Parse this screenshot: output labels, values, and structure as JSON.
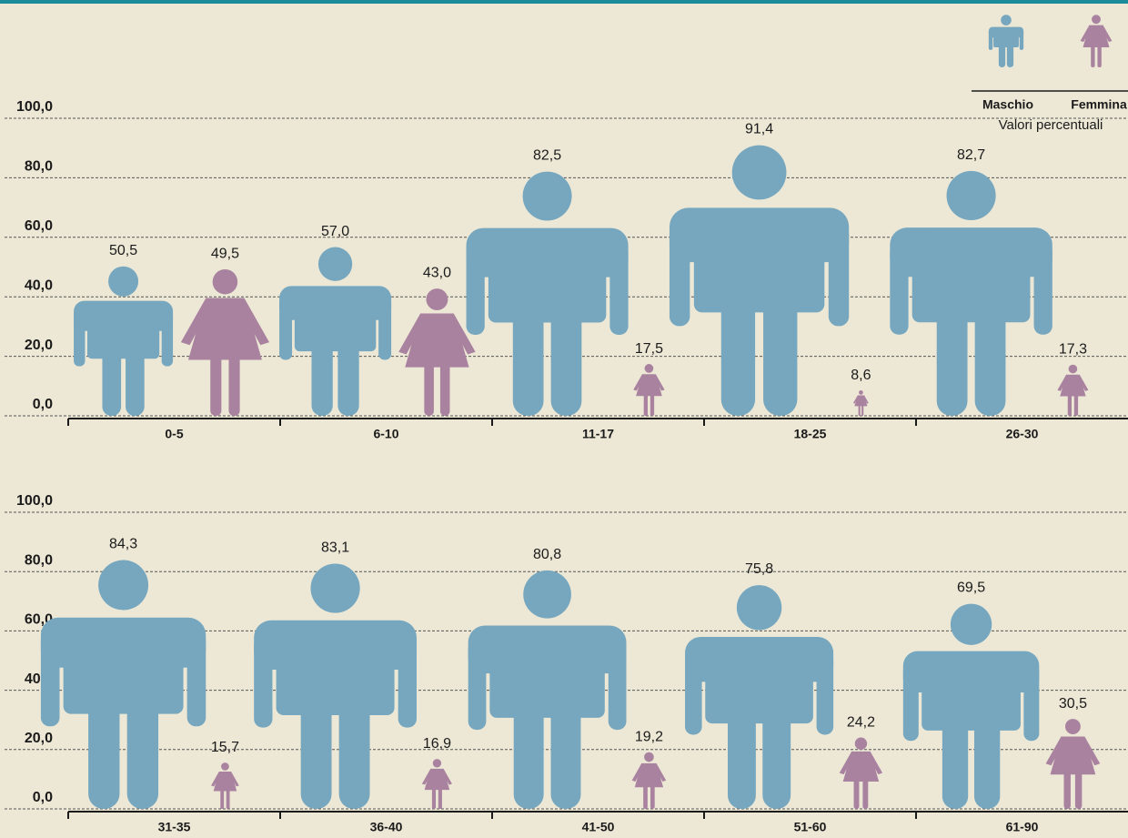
{
  "chart_data": [
    {
      "type": "pictogram",
      "categories": [
        "0-5",
        "6-10",
        "11-17",
        "18-25",
        "26-30"
      ],
      "series": [
        {
          "name": "Maschio",
          "color": "#76a7bf",
          "values": [
            50.5,
            57.0,
            82.5,
            91.4,
            82.7
          ],
          "value_labels": [
            "50,5",
            "57,0",
            "82,5",
            "91,4",
            "82,7"
          ]
        },
        {
          "name": "Femmina",
          "color": "#a9829f",
          "values": [
            49.5,
            43.0,
            17.5,
            8.6,
            17.3
          ],
          "value_labels": [
            "49,5",
            "43,0",
            "17,5",
            "8,6",
            "17,3"
          ]
        }
      ],
      "subtitle": "Valori percentuali",
      "ylim": [
        0,
        100
      ],
      "yticks": [
        {
          "value": 0,
          "label": "0,0"
        },
        {
          "value": 20,
          "label": "20,0"
        },
        {
          "value": 40,
          "label": "40,0"
        },
        {
          "value": 60,
          "label": "60,0"
        },
        {
          "value": 80,
          "label": "80,0"
        },
        {
          "value": 100,
          "label": "100,0"
        }
      ],
      "grid": true
    },
    {
      "type": "pictogram",
      "categories": [
        "31-35",
        "36-40",
        "41-50",
        "51-60",
        "61-90"
      ],
      "series": [
        {
          "color": "#76a7bf",
          "values": [
            84.3,
            83.1,
            80.8,
            75.8,
            69.5
          ],
          "value_labels": [
            "84,3",
            "83,1",
            "80,8",
            "75,8",
            "69,5"
          ]
        },
        {
          "color": "#a9829f",
          "values": [
            15.7,
            16.9,
            19.2,
            24.2,
            30.5
          ],
          "value_labels": [
            "15,7",
            "16,9",
            "19,2",
            "24,2",
            "30,5"
          ]
        }
      ],
      "ylim": [
        0,
        100
      ],
      "yticks": [
        {
          "value": 0,
          "label": "0,0"
        },
        {
          "value": 20,
          "label": "20,0"
        },
        {
          "value": 40,
          "label": "40,0"
        },
        {
          "value": 60,
          "label": "60,0"
        },
        {
          "value": 80,
          "label": "80,0"
        },
        {
          "value": 100,
          "label": "100,0"
        }
      ],
      "grid": true
    }
  ]
}
